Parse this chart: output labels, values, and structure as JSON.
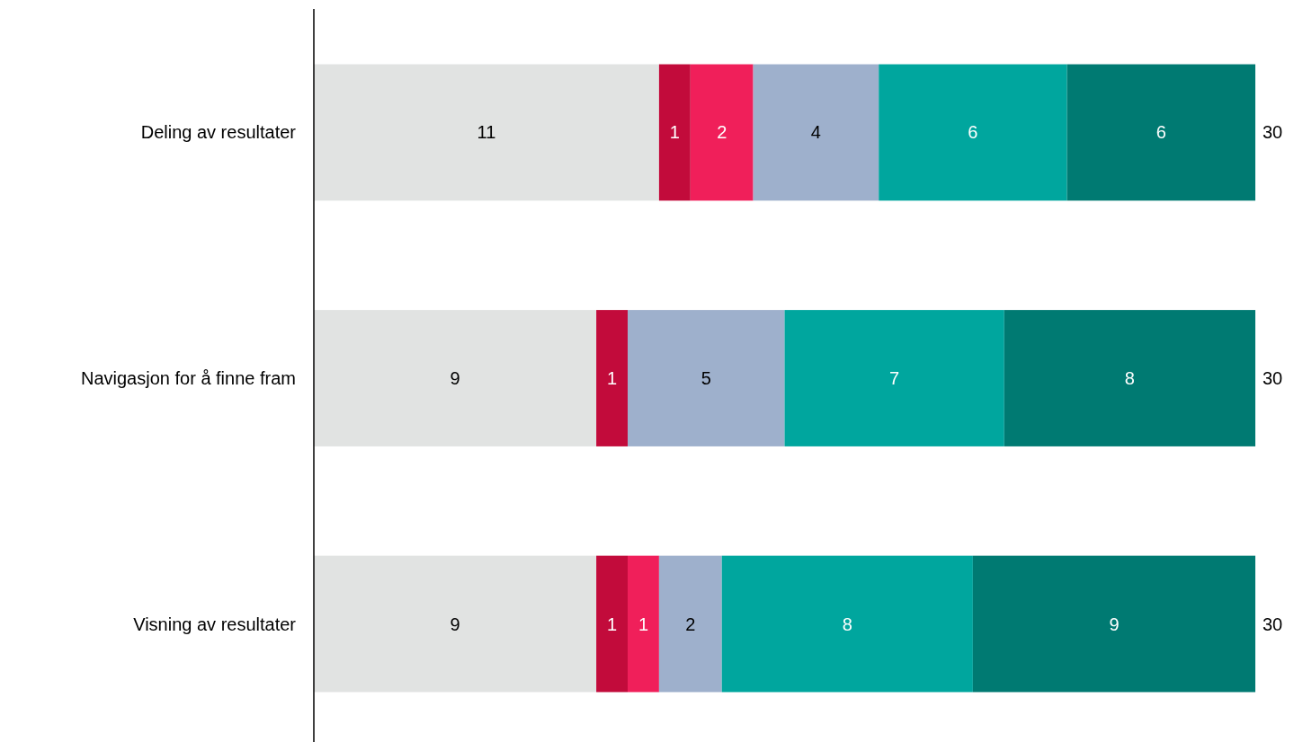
{
  "chart_data": {
    "type": "bar",
    "orientation": "horizontal",
    "stacked": true,
    "categories": [
      "Deling av resultater",
      "Navigasjon for å finne fram",
      "Visning av resultater"
    ],
    "series": [
      {
        "color": "#e1e3e2",
        "values": [
          11,
          9,
          9
        ],
        "value_labels": [
          "11",
          "9",
          "9"
        ]
      },
      {
        "color": "#c20b3b",
        "values": [
          1,
          1,
          1
        ],
        "value_labels": [
          "1",
          "1",
          "1"
        ]
      },
      {
        "color": "#f01f5a",
        "values": [
          2,
          0,
          1
        ],
        "value_labels": [
          "2",
          null,
          "1"
        ]
      },
      {
        "color": "#9eb0cc",
        "values": [
          4,
          5,
          2
        ],
        "value_labels": [
          "4",
          "5",
          "2"
        ]
      },
      {
        "color": "#00a69e",
        "values": [
          6,
          7,
          8
        ],
        "value_labels": [
          "6",
          "7",
          "8"
        ]
      },
      {
        "color": "#007a72",
        "values": [
          6,
          8,
          9
        ],
        "value_labels": [
          "6",
          "8",
          "9"
        ]
      }
    ],
    "totals": [
      "30",
      "30",
      "30"
    ]
  }
}
